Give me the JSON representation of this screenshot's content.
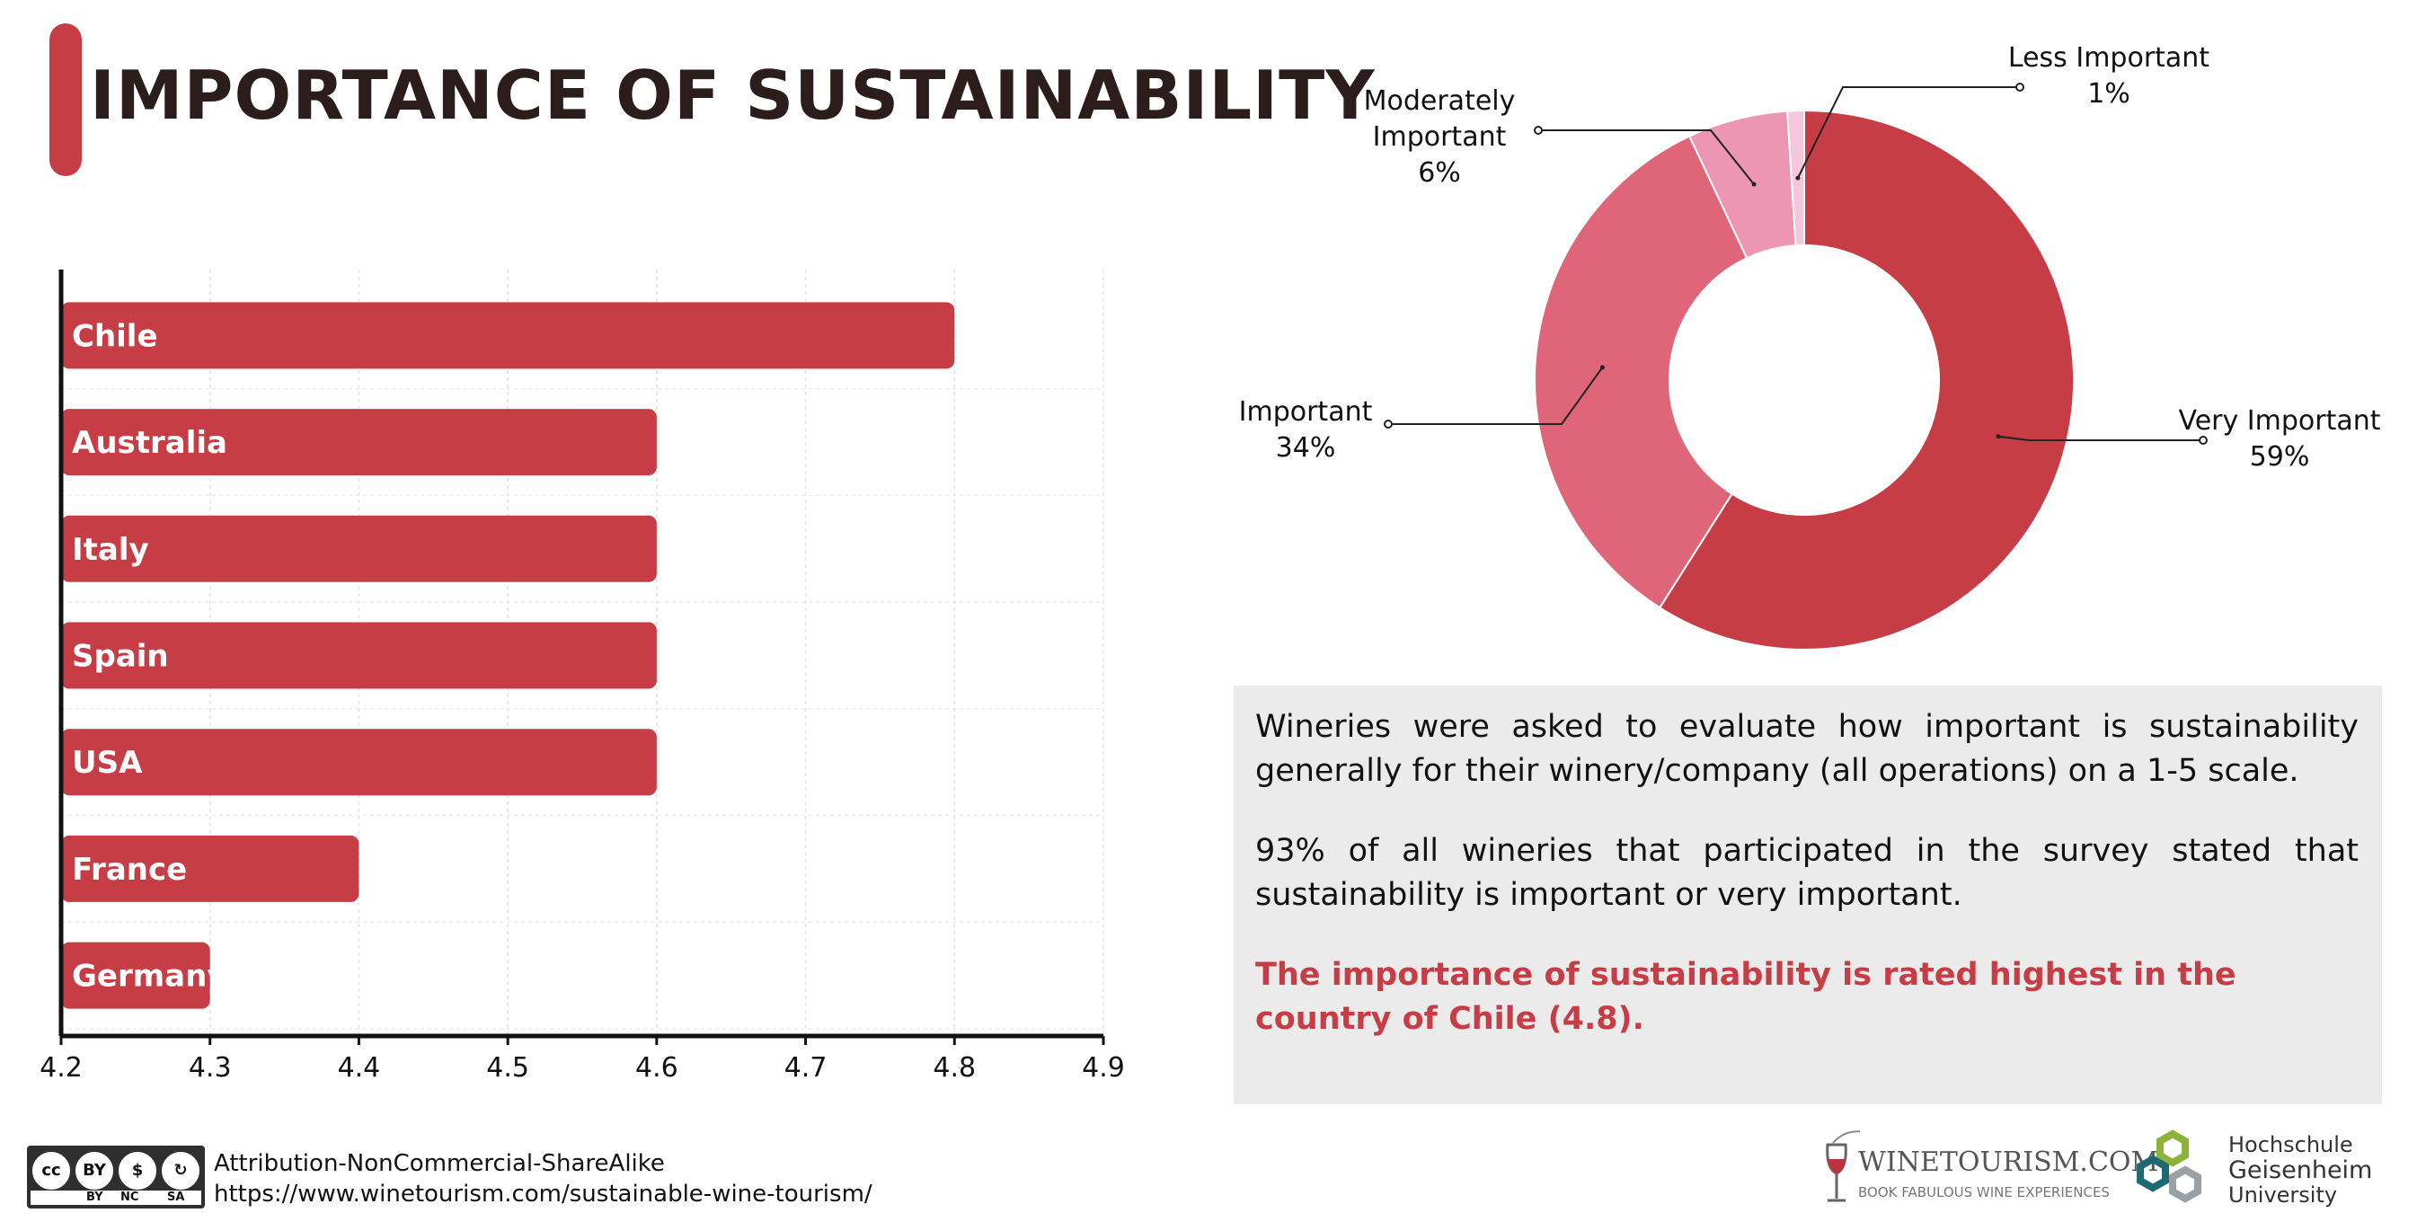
{
  "title": "IMPORTANCE OF SUSTAINABILITY",
  "colors": {
    "accent": "#c73d45",
    "very_important": "#c73d45",
    "important": "#de6678",
    "moderately_important": "#ec96b3",
    "less_important": "#f6c7da"
  },
  "chart_data": [
    {
      "type": "bar",
      "orientation": "horizontal",
      "categories": [
        "Chile",
        "Australia",
        "Italy",
        "Spain",
        "USA",
        "France",
        "Germany"
      ],
      "values": [
        4.8,
        4.6,
        4.6,
        4.6,
        4.6,
        4.4,
        4.3
      ],
      "xlim": [
        4.2,
        4.9
      ],
      "xticks": [
        "4.2",
        "4.3",
        "4.4",
        "4.5",
        "4.6",
        "4.7",
        "4.8",
        "4.9"
      ],
      "grid": true,
      "title": "",
      "xlabel": "",
      "ylabel": ""
    },
    {
      "type": "pie",
      "donut": true,
      "slices": [
        {
          "name": "Very Important",
          "value": 59,
          "label": "59%"
        },
        {
          "name": "Important",
          "value": 34,
          "label": "34%"
        },
        {
          "name": "Moderately Important",
          "value": 6,
          "label": "6%"
        },
        {
          "name": "Less Important",
          "value": 1,
          "label": "1%"
        }
      ],
      "label_lines": {
        "moderately": [
          "Moderately",
          "Important"
        ],
        "less": "Less Important"
      }
    }
  ],
  "info": {
    "p1": "Wineries were asked to evaluate how important is sustainability generally for their winery/company (all operations) on a 1-5 scale.",
    "p2": "93% of all wineries that participated in the survey stated that sustainability is important or very important.",
    "highlight": "The importance of sustainability is rated highest in the country of Chile (4.8)."
  },
  "license": {
    "icons": [
      "cc",
      "BY",
      "$",
      "↻"
    ],
    "tags": [
      "BY",
      "NC",
      "SA"
    ],
    "text": "Attribution-NonCommercial-ShareAlike",
    "url": "https://www.winetourism.com/sustainable-wine-tourism/"
  },
  "logos": {
    "winetourism": {
      "name": "WINETOURISM.COM",
      "tagline": "BOOK FABULOUS WINE EXPERIENCES",
      "icon": "wine-glass-icon"
    },
    "geisenheim": {
      "line1": "Hochschule",
      "line2": "Geisenheim",
      "line3": "University",
      "icon": "hexagon-logo-icon"
    }
  }
}
